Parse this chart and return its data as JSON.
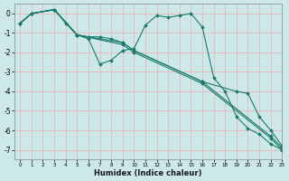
{
  "xlabel": "Humidex (Indice chaleur)",
  "xlim": [
    -0.5,
    23
  ],
  "ylim": [
    -7.5,
    0.5
  ],
  "background_color": "#cce8e8",
  "plot_bg_color": "#cce8e8",
  "grid_color": "#e8b8b8",
  "line_color": "#1a7a6e",
  "line1_x": [
    0,
    1,
    3,
    4,
    5,
    6,
    7,
    8,
    9,
    10,
    11,
    12,
    13,
    14,
    15,
    16,
    17,
    18,
    19,
    20,
    21,
    22,
    23
  ],
  "line1_y": [
    -0.5,
    0.0,
    0.2,
    -0.5,
    -1.1,
    -1.3,
    -2.6,
    -2.4,
    -1.9,
    -1.8,
    -0.6,
    -0.1,
    -0.2,
    -0.1,
    0.0,
    -0.7,
    -3.3,
    -4.0,
    -5.3,
    -5.9,
    -6.2,
    -6.7,
    -7.0
  ],
  "line2_x": [
    0,
    1,
    3,
    5,
    6,
    7,
    8,
    9,
    10,
    16,
    19,
    20,
    21,
    22,
    23
  ],
  "line2_y": [
    -0.5,
    0.0,
    0.2,
    -1.1,
    -1.2,
    -1.2,
    -1.3,
    -1.5,
    -1.9,
    -3.5,
    -4.0,
    -4.1,
    -5.3,
    -6.0,
    -6.8
  ],
  "line3_x": [
    0,
    1,
    3,
    5,
    9,
    10,
    16,
    22,
    23
  ],
  "line3_y": [
    -0.5,
    0.0,
    0.2,
    -1.1,
    -1.5,
    -1.9,
    -3.5,
    -6.3,
    -6.9
  ],
  "line4_x": [
    0,
    1,
    3,
    5,
    9,
    10,
    16,
    22,
    23
  ],
  "line4_y": [
    -0.5,
    0.0,
    0.2,
    -1.1,
    -1.6,
    -2.0,
    -3.6,
    -6.4,
    -7.0
  ],
  "xticks": [
    0,
    1,
    2,
    3,
    4,
    5,
    6,
    7,
    8,
    9,
    10,
    11,
    12,
    13,
    14,
    15,
    16,
    17,
    18,
    19,
    20,
    21,
    22,
    23
  ],
  "yticks": [
    0,
    -1,
    -2,
    -3,
    -4,
    -5,
    -6,
    -7
  ]
}
